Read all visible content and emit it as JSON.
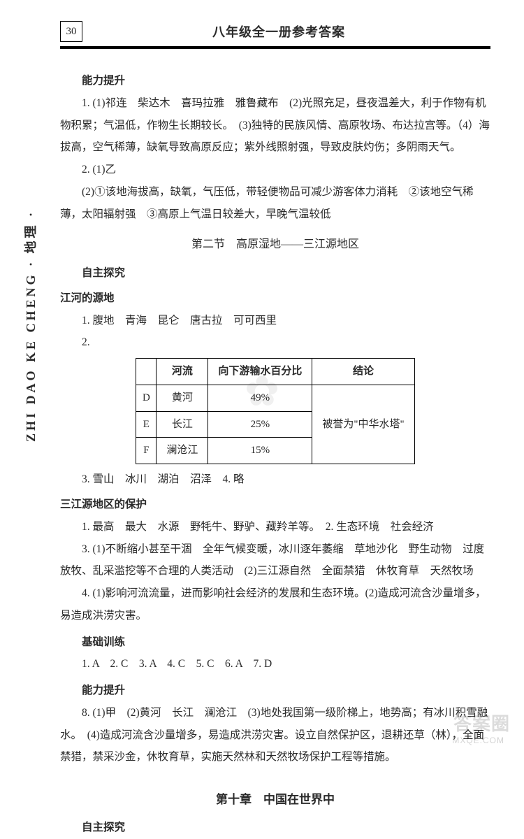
{
  "header": {
    "page_number": "30",
    "title": "八年级全一册参考答案"
  },
  "sidebar_pinyin": "ZHI  DAO  KE  CHENG  · 地理 ·",
  "sections": {
    "ability": {
      "heading": "能力提升",
      "p1": "1. (1)祁连　柴达木　喜玛拉雅　雅鲁藏布　(2)光照充足，昼夜温差大，利于作物有机物积累；气温低，作物生长期较长。　(3)独特的民族风情、高原牧场、布达拉宫等。（4）海拔高，空气稀薄，缺氧导致高原反应；紫外线照射强，导致皮肤灼伤；多阴雨天气。",
      "p2": "2. (1)乙",
      "p3": "(2)①该地海拔高，缺氧，气压低，带轻便物品可减少游客体力消耗　②该地空气稀薄，太阳辐射强　③高原上气温日较差大，早晚气温较低"
    },
    "section2_title": "第二节　高原湿地——三江源地区",
    "explore": {
      "heading": "自主探究",
      "sub1": "江河的源地",
      "p1": "1. 腹地　青海　昆仑　唐古拉　可可西里",
      "p2": "2.",
      "table": {
        "columns": [
          "",
          "河流",
          "向下游输水百分比",
          "结论"
        ],
        "rows": [
          [
            "D",
            "黄河",
            "49%"
          ],
          [
            "E",
            "长江",
            "25%"
          ],
          [
            "F",
            "澜沧江",
            "15%"
          ]
        ],
        "conclusion": "被誉为\"中华水塔\""
      },
      "p3": "3. 雪山　冰川　湖泊　沼泽　4. 略",
      "sub2": "三江源地区的保护",
      "p4": "1. 最高　最大　水源　野牦牛、野驴、藏羚羊等。　2. 生态环境　社会经济",
      "p5": "3. (1)不断缩小甚至干涸　全年气候变暖，冰川逐年萎缩　草地沙化　野生动物　过度放牧、乱采滥挖等不合理的人类活动　(2)三江源自然　全面禁猎　休牧育草　天然牧场",
      "p6": "4. (1)影响河流流量，进而影响社会经济的发展和生态环境。(2)造成河流含沙量增多，易造成洪涝灾害。"
    },
    "basic": {
      "heading": "基础训练",
      "p1": "1. A　2. C　3. A　4. C　5. C　6. A　7. D"
    },
    "ability2": {
      "heading": "能力提升",
      "p1": "8. (1)甲　(2)黄河　长江　澜沧江　(3)地处我国第一级阶梯上，地势高；有冰川积雪融水。　(4)造成河流含沙量增多，易造成洪涝灾害。设立自然保护区，退耕还草（林），全面禁猎，禁采沙金，休牧育草，实施天然林和天然牧场保护工程等措施。"
    },
    "chapter10": "第十章　中国在世界中",
    "explore2": "自主探究"
  },
  "watermark": {
    "main": "答案圈",
    "sub": "MXQE.COM"
  },
  "style": {
    "page_bg": "#ffffff",
    "text_color": "#2a2a2a",
    "body_fontsize": 15.5,
    "line_height": 2.05,
    "header_border": "#000000"
  }
}
